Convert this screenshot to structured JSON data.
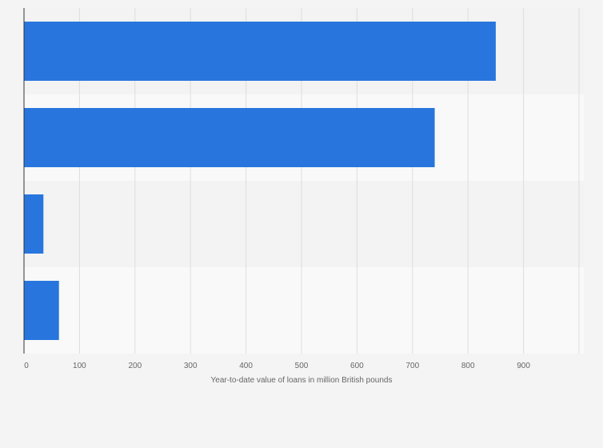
{
  "chart_data": {
    "type": "bar",
    "orientation": "horizontal",
    "categories": [
      "",
      "",
      "",
      ""
    ],
    "values": [
      850,
      740,
      35,
      63
    ],
    "xlabel": "Year-to-date value of loans in million British pounds",
    "ylabel": "",
    "xlim": [
      0,
      1000
    ],
    "x_ticks": [
      0,
      100,
      200,
      300,
      400,
      500,
      600,
      700,
      800,
      900
    ],
    "grid": true,
    "legend": "none",
    "colors": {
      "bar": "#2876dd",
      "band_dark": "#f3f3f3",
      "band_light": "#f9f9f9",
      "grid": "#dedede",
      "axis": "#333333"
    }
  }
}
